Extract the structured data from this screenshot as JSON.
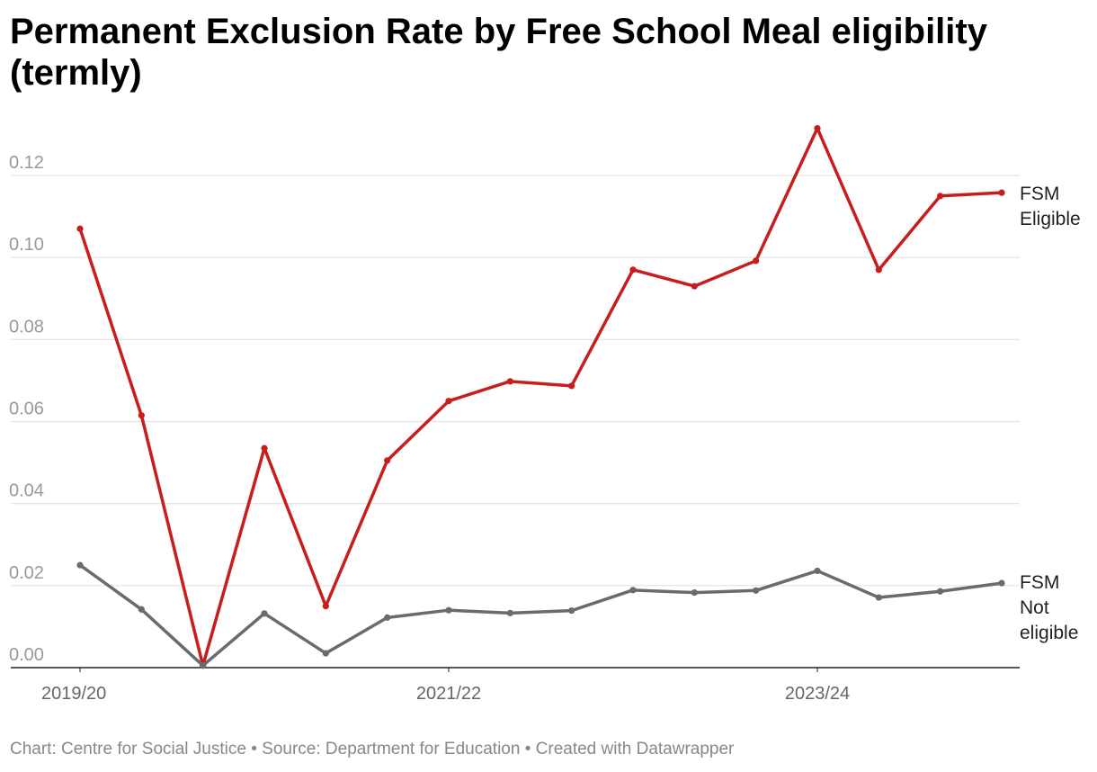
{
  "header": {
    "title": "Permanent Exclusion Rate by Free School Meal eligibility (termly)"
  },
  "footer": {
    "chart_by": "Chart: Centre for Social Justice",
    "separator1": "•",
    "source": "Source: Department for Education",
    "separator2": "•",
    "created_with": "Created with Datawrapper"
  },
  "colors": {
    "fsm_eligible": "#c71e1d",
    "fsm_not_eligible": "#6b6b6b",
    "gridline": "#e3e3e3",
    "axis": "#222222"
  },
  "chart_data": {
    "type": "line",
    "title": "Permanent Exclusion Rate by Free School Meal eligibility (termly)",
    "xlabel": "",
    "ylabel": "",
    "ylim": [
      0,
      0.13
    ],
    "y_ticks": [
      "0.00",
      "0.02",
      "0.04",
      "0.06",
      "0.08",
      "0.10",
      "0.12"
    ],
    "x_tick_labels": [
      {
        "index": 0,
        "label": "2019/20"
      },
      {
        "index": 6,
        "label": "2021/22"
      },
      {
        "index": 12,
        "label": "2023/24"
      }
    ],
    "x": [
      0,
      1,
      2,
      3,
      4,
      5,
      6,
      7,
      8,
      9,
      10,
      11,
      12,
      13,
      14,
      15
    ],
    "series": [
      {
        "name": "FSM Eligible",
        "label_lines": [
          "FSM",
          "Eligible"
        ],
        "color": "#c71e1d",
        "values": [
          0.107,
          0.0615,
          0.0005,
          0.0535,
          0.015,
          0.0505,
          0.065,
          0.0698,
          0.0687,
          0.097,
          0.093,
          0.0992,
          0.1315,
          0.097,
          0.115,
          0.1158
        ]
      },
      {
        "name": "FSM Not eligible",
        "label_lines": [
          "FSM",
          "Not",
          "eligible"
        ],
        "color": "#6b6b6b",
        "values": [
          0.025,
          0.0142,
          0.0005,
          0.0132,
          0.0035,
          0.0122,
          0.014,
          0.0133,
          0.0139,
          0.0189,
          0.0183,
          0.0188,
          0.0236,
          0.0171,
          0.0186,
          0.0206
        ]
      }
    ]
  }
}
